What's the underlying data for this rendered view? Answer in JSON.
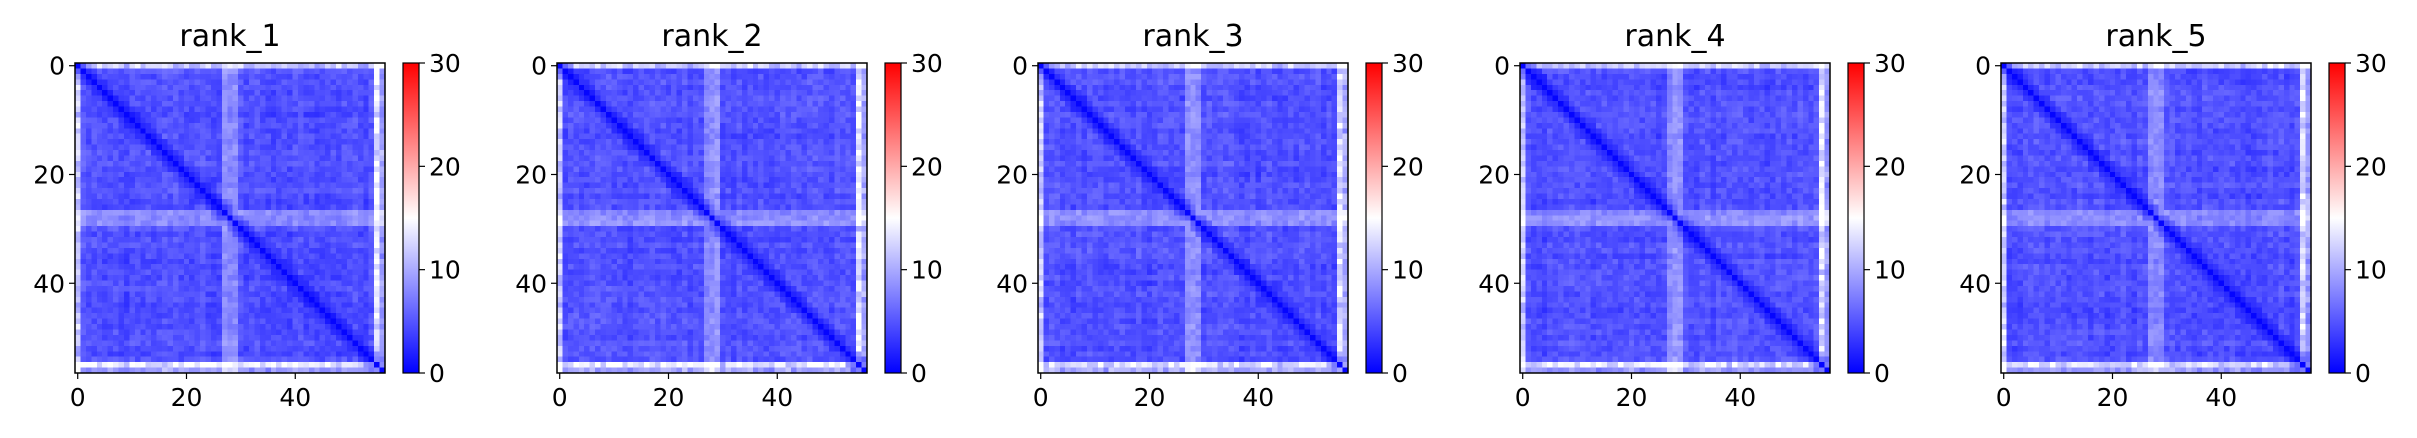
{
  "chart_data": [
    {
      "type": "heatmap",
      "title": "rank_1",
      "matrix_size": 57,
      "xticks": [
        "0",
        "20",
        "40"
      ],
      "yticks": [
        "0",
        "20",
        "40"
      ],
      "colorbar": {
        "min": 0,
        "max": 30,
        "ticks": [
          "0",
          "10",
          "20",
          "30"
        ],
        "cmap": "bwr"
      },
      "value_range": [
        0,
        15
      ]
    },
    {
      "type": "heatmap",
      "title": "rank_2",
      "matrix_size": 57,
      "xticks": [
        "0",
        "20",
        "40"
      ],
      "yticks": [
        "0",
        "20",
        "40"
      ],
      "colorbar": {
        "min": 0,
        "max": 30,
        "ticks": [
          "0",
          "10",
          "20",
          "30"
        ],
        "cmap": "bwr"
      },
      "value_range": [
        0,
        15
      ]
    },
    {
      "type": "heatmap",
      "title": "rank_3",
      "matrix_size": 57,
      "xticks": [
        "0",
        "20",
        "40"
      ],
      "yticks": [
        "0",
        "20",
        "40"
      ],
      "colorbar": {
        "min": 0,
        "max": 30,
        "ticks": [
          "0",
          "10",
          "20",
          "30"
        ],
        "cmap": "bwr"
      },
      "value_range": [
        0,
        15
      ]
    },
    {
      "type": "heatmap",
      "title": "rank_4",
      "matrix_size": 57,
      "xticks": [
        "0",
        "20",
        "40"
      ],
      "yticks": [
        "0",
        "20",
        "40"
      ],
      "colorbar": {
        "min": 0,
        "max": 30,
        "ticks": [
          "0",
          "10",
          "20",
          "30"
        ],
        "cmap": "bwr"
      },
      "value_range": [
        0,
        15
      ]
    },
    {
      "type": "heatmap",
      "title": "rank_5",
      "matrix_size": 57,
      "xticks": [
        "0",
        "20",
        "40"
      ],
      "yticks": [
        "0",
        "20",
        "40"
      ],
      "colorbar": {
        "min": 0,
        "max": 30,
        "ticks": [
          "0",
          "10",
          "20",
          "30"
        ],
        "cmap": "bwr"
      },
      "value_range": [
        0,
        15
      ]
    }
  ],
  "colors": {
    "low": "#0000ff",
    "mid": "#ffffff",
    "high": "#ff0000"
  }
}
